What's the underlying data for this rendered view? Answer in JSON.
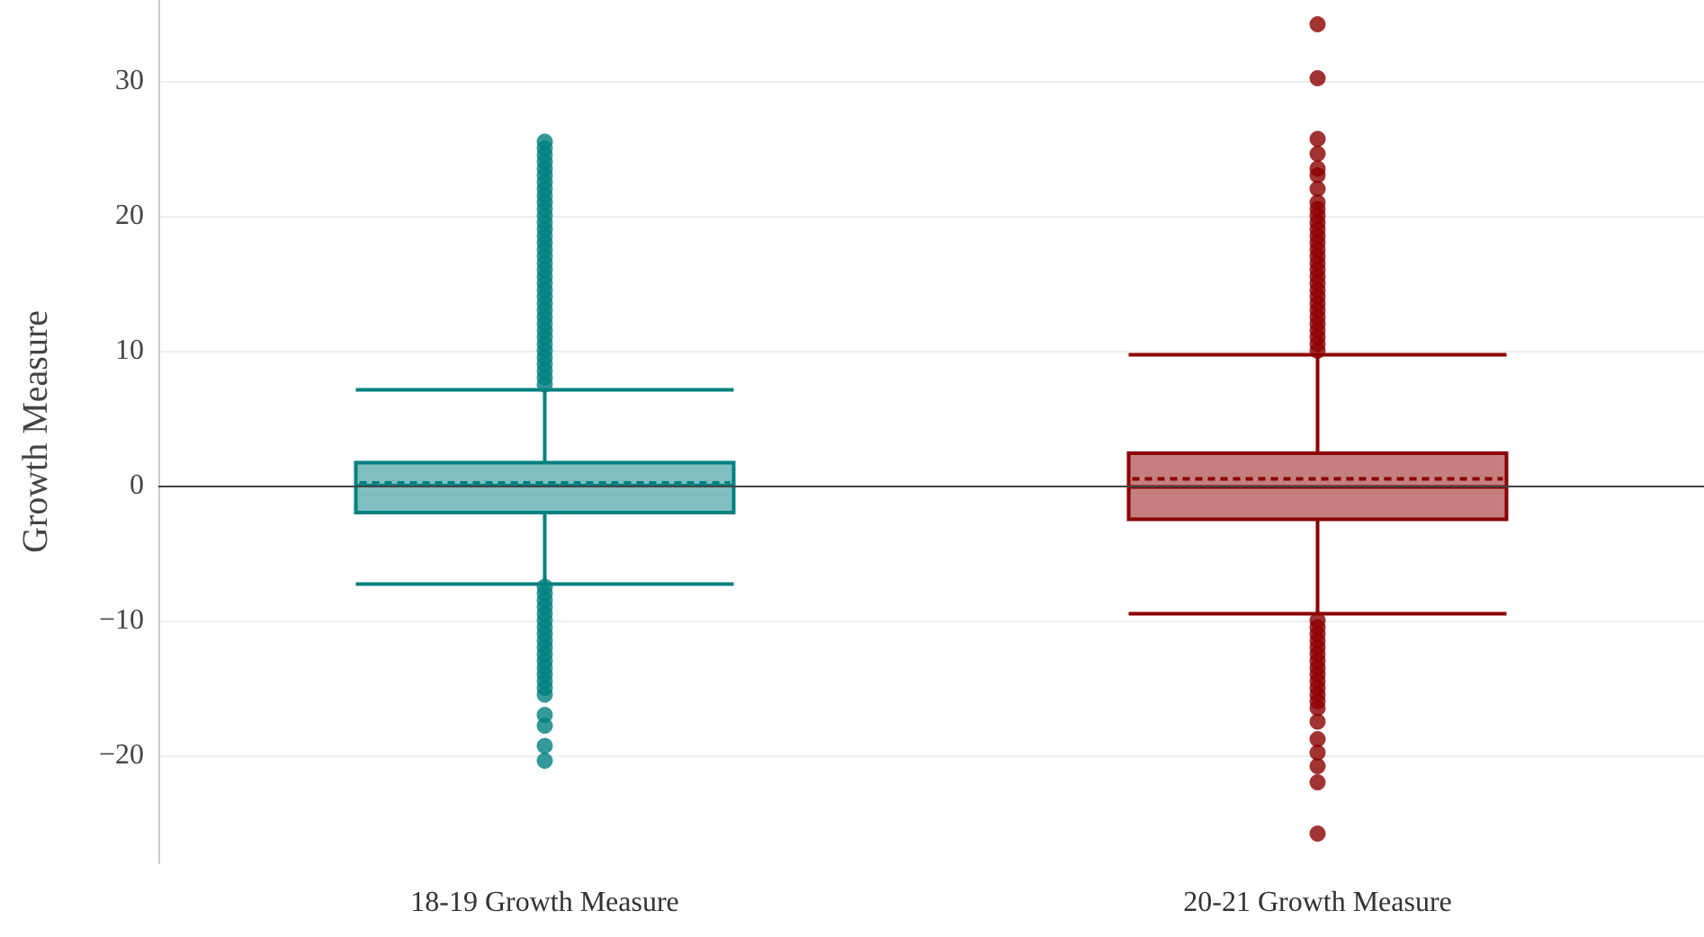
{
  "chart_data": {
    "type": "box",
    "ylabel": "Growth Measure",
    "categories": [
      "18-19 Growth Measure",
      "20-21 Growth Measure"
    ],
    "colors": [
      "#008080",
      "#8b0000"
    ],
    "boxes": [
      {
        "low": -7.3,
        "q1": -2.0,
        "median": 0,
        "q3": 1.7,
        "high": 7.1,
        "mean": 0.2,
        "outliers": [
          7.5,
          8,
          8.5,
          9,
          9.5,
          10,
          10.5,
          11,
          11.5,
          12,
          12.5,
          13,
          13.5,
          14,
          14.5,
          15,
          15.5,
          16,
          16.5,
          17,
          17.5,
          18,
          18.5,
          19,
          19.5,
          20,
          20.5,
          21,
          21.5,
          22,
          22.5,
          23,
          23.5,
          24,
          24.5,
          25,
          25.5,
          -7.5,
          -8,
          -8.5,
          -9,
          -9.5,
          -10,
          -10.5,
          -11,
          -11.5,
          -12,
          -12.5,
          -13,
          -13.5,
          -14,
          -14.5,
          -15,
          -15.5,
          -17,
          -17.8,
          -19.3,
          -20.4
        ]
      },
      {
        "low": -9.5,
        "q1": -2.5,
        "median": -0.1,
        "q3": 2.4,
        "high": 9.7,
        "mean": 0.5,
        "outliers": [
          10,
          10.5,
          11,
          11.5,
          12,
          12.5,
          13,
          13.5,
          14,
          14.5,
          15,
          15.5,
          16,
          16.5,
          17,
          17.5,
          18,
          18.5,
          19,
          19.5,
          20,
          20.5,
          21,
          22,
          23,
          23.5,
          24.6,
          25.7,
          30.2,
          34.2,
          -10,
          -10.5,
          -11,
          -11.5,
          -12,
          -12.5,
          -13,
          -13.5,
          -14,
          -14.5,
          -15,
          -15.5,
          -16,
          -16.5,
          -17.5,
          -18.8,
          -19.8,
          -20.8,
          -22,
          -25.8
        ]
      }
    ],
    "ylim": [
      -28,
      36
    ],
    "yticks": [
      {
        "value": -20,
        "label": "−20"
      },
      {
        "value": -10,
        "label": "−10"
      },
      0,
      10,
      20,
      30
    ],
    "ref_lines": [
      {
        "axis": "y",
        "value": 0,
        "color": "#444444"
      }
    ],
    "grid": "y"
  }
}
